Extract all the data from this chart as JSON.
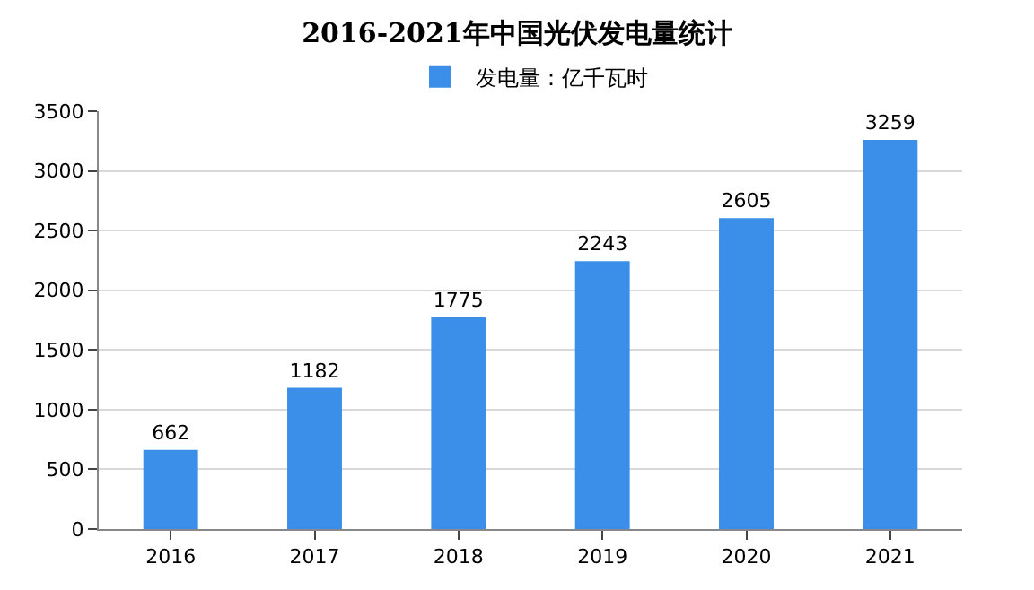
{
  "chart_data": {
    "type": "bar",
    "title": "2016-2021年中国光伏发电量统计",
    "categories": [
      "2016",
      "2017",
      "2018",
      "2019",
      "2020",
      "2021"
    ],
    "series": [
      {
        "name": "发电量：亿千瓦时",
        "color": "#3b8fe8",
        "values": [
          662,
          1182,
          1775,
          2243,
          2605,
          3259
        ]
      }
    ],
    "ylim": [
      0,
      3500
    ],
    "yticks": [
      0,
      500,
      1000,
      1500,
      2000,
      2500,
      3000,
      3500
    ],
    "grid": "y",
    "legend": "top",
    "data_labels": true
  }
}
